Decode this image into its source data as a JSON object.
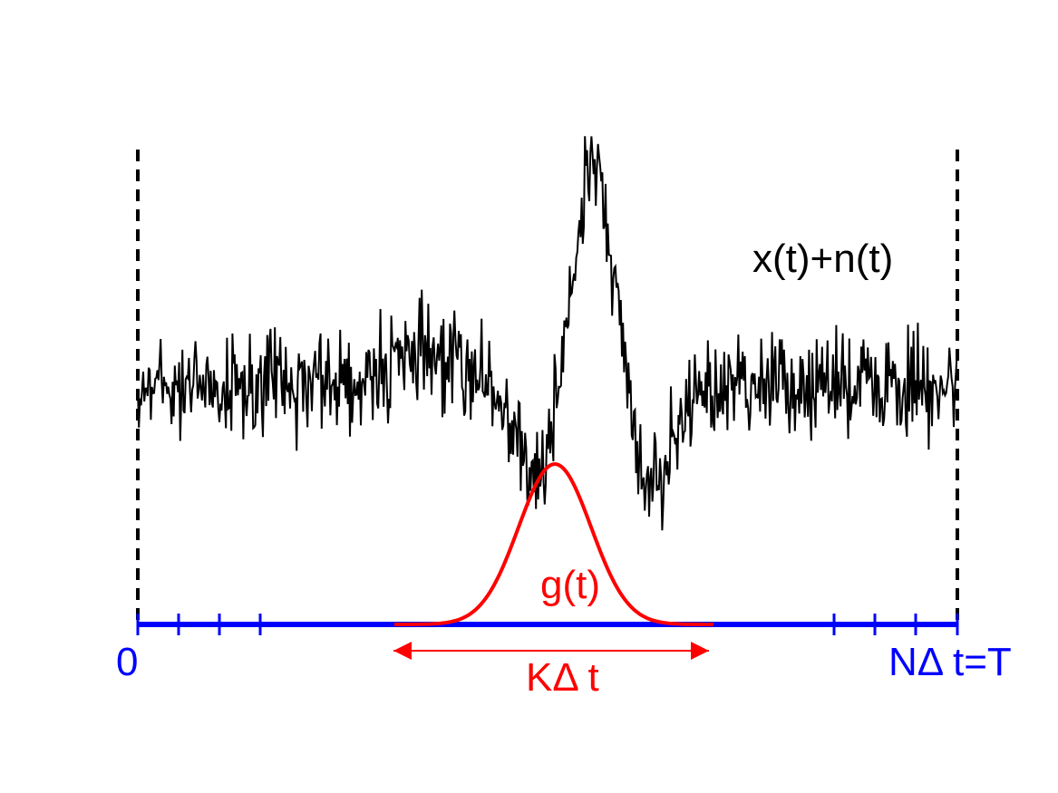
{
  "labels": {
    "signal": "x(t)+n(t)",
    "kernel": "g(t)",
    "start": "0",
    "end": "NΔ t=T",
    "width": "KΔ t"
  }
}
